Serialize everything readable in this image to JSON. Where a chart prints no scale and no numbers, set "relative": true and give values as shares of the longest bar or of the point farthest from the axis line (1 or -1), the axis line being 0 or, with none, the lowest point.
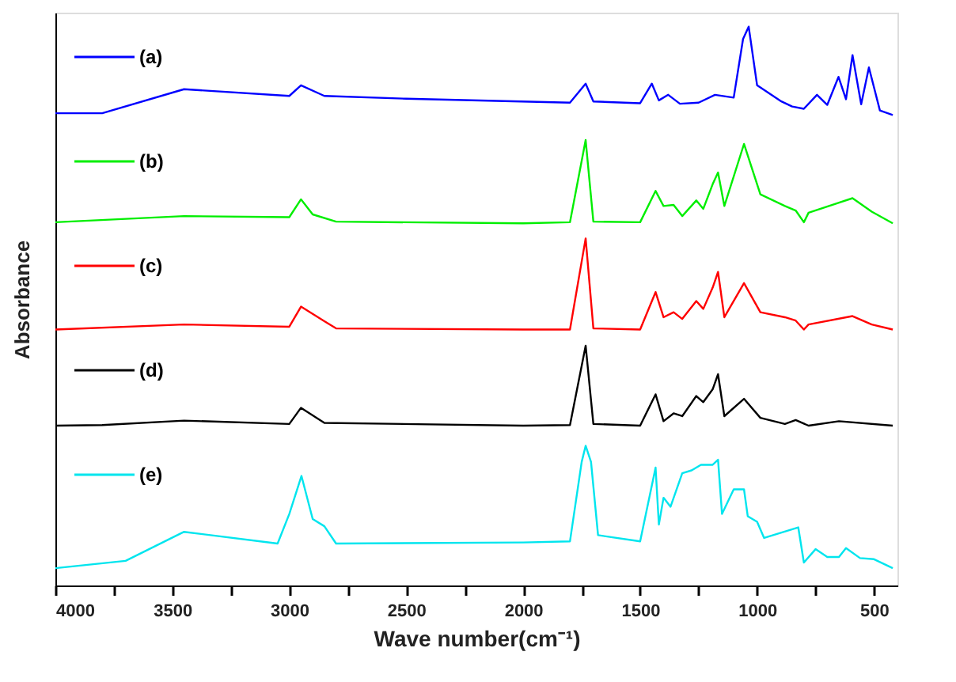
{
  "chart_data": {
    "type": "line",
    "relative": true,
    "xlabel": "Wave number(cm⁻¹)",
    "ylabel": "Absorbance",
    "xlim": [
      4000,
      400
    ],
    "xticks": [
      4000,
      {
        "value": 3750,
        "label": null
      },
      3500,
      {
        "value": 3250,
        "label": null
      },
      3000,
      {
        "value": 2750,
        "label": null
      },
      2500,
      {
        "value": 2250,
        "label": null
      },
      2000,
      {
        "value": 1750,
        "label": null
      },
      1500,
      {
        "value": 1250,
        "label": null
      },
      1000,
      {
        "value": 750,
        "label": null
      },
      500
    ],
    "grid": false,
    "legend": "left",
    "tick_labels": "x",
    "line_style": "solid",
    "marker": "none",
    "series": [
      {
        "name": "(a)",
        "color": "#0000ff",
        "x": [
          4000,
          3800,
          3450,
          3000,
          2950,
          2850,
          2500,
          1800,
          1733,
          1700,
          1500,
          1450,
          1420,
          1380,
          1330,
          1250,
          1180,
          1100,
          1060,
          1036,
          1000,
          900,
          850,
          800,
          744,
          700,
          652,
          620,
          592,
          555,
          522,
          475,
          420
        ],
        "values": [
          0.845,
          0.845,
          0.888,
          0.876,
          0.895,
          0.876,
          0.871,
          0.864,
          0.898,
          0.866,
          0.863,
          0.898,
          0.868,
          0.878,
          0.862,
          0.864,
          0.878,
          0.873,
          0.978,
          1.0,
          0.895,
          0.867,
          0.857,
          0.853,
          0.878,
          0.86,
          0.91,
          0.87,
          0.949,
          0.861,
          0.927,
          0.85,
          0.842
        ]
      },
      {
        "name": "(b)",
        "color": "#00ee00",
        "x": [
          4000,
          3450,
          3000,
          2950,
          2900,
          2800,
          2000,
          1800,
          1733,
          1700,
          1500,
          1434,
          1400,
          1357,
          1320,
          1260,
          1230,
          1190,
          1167,
          1140,
          1056,
          986,
          881,
          835,
          800,
          780,
          592,
          510,
          420
        ],
        "values": [
          0.65,
          0.661,
          0.659,
          0.691,
          0.664,
          0.651,
          0.648,
          0.65,
          0.797,
          0.651,
          0.65,
          0.706,
          0.679,
          0.681,
          0.661,
          0.689,
          0.674,
          0.718,
          0.739,
          0.679,
          0.79,
          0.7,
          0.679,
          0.671,
          0.65,
          0.667,
          0.693,
          0.669,
          0.648
        ]
      },
      {
        "name": "(c)",
        "color": "#ff0000",
        "x": [
          4000,
          3450,
          3000,
          2950,
          2850,
          2800,
          2000,
          1800,
          1733,
          1700,
          1500,
          1434,
          1400,
          1357,
          1320,
          1260,
          1230,
          1190,
          1167,
          1140,
          1056,
          986,
          881,
          835,
          800,
          780,
          592,
          510,
          420
        ],
        "values": [
          0.458,
          0.467,
          0.463,
          0.499,
          0.473,
          0.46,
          0.458,
          0.458,
          0.621,
          0.46,
          0.458,
          0.525,
          0.48,
          0.489,
          0.477,
          0.509,
          0.495,
          0.533,
          0.561,
          0.48,
          0.541,
          0.489,
          0.48,
          0.474,
          0.458,
          0.467,
          0.482,
          0.467,
          0.458
        ]
      },
      {
        "name": "(d)",
        "color": "#000000",
        "x": [
          4000,
          3800,
          3450,
          3000,
          2950,
          2850,
          2000,
          1800,
          1733,
          1700,
          1500,
          1434,
          1400,
          1357,
          1320,
          1260,
          1230,
          1190,
          1167,
          1140,
          1056,
          986,
          881,
          835,
          780,
          650,
          420
        ],
        "values": [
          0.286,
          0.287,
          0.295,
          0.289,
          0.318,
          0.291,
          0.286,
          0.287,
          0.429,
          0.289,
          0.286,
          0.342,
          0.294,
          0.308,
          0.303,
          0.339,
          0.328,
          0.351,
          0.378,
          0.303,
          0.334,
          0.3,
          0.289,
          0.296,
          0.286,
          0.294,
          0.286
        ]
      },
      {
        "name": "(e)",
        "color": "#00e5ee",
        "x": [
          4000,
          3700,
          3450,
          3050,
          3000,
          2948,
          2900,
          2850,
          2800,
          2000,
          1800,
          1750,
          1733,
          1710,
          1680,
          1500,
          1434,
          1420,
          1400,
          1370,
          1320,
          1280,
          1240,
          1190,
          1167,
          1150,
          1100,
          1056,
          1040,
          1000,
          970,
          824,
          800,
          750,
          700,
          650,
          620,
          560,
          500,
          420
        ],
        "values": [
          0.031,
          0.044,
          0.096,
          0.075,
          0.128,
          0.196,
          0.119,
          0.106,
          0.075,
          0.077,
          0.079,
          0.221,
          0.25,
          0.221,
          0.09,
          0.079,
          0.211,
          0.109,
          0.157,
          0.141,
          0.201,
          0.206,
          0.216,
          0.216,
          0.225,
          0.128,
          0.172,
          0.172,
          0.124,
          0.114,
          0.085,
          0.104,
          0.041,
          0.065,
          0.051,
          0.051,
          0.067,
          0.049,
          0.047,
          0.031
        ]
      }
    ]
  }
}
